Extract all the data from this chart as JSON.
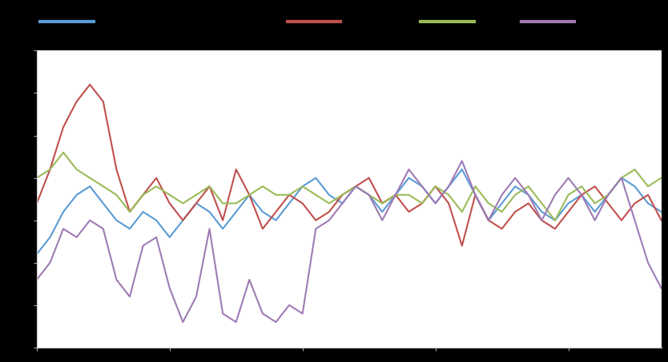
{
  "background_color": "#000000",
  "plot_bg_color": "#ffffff",
  "line_colors": [
    "#5b9bd5",
    "#c0504d",
    "#9bbb59",
    "#9e7bb5"
  ],
  "line_width": 1.5,
  "figsize": [
    8.34,
    4.53
  ],
  "dpi": 100,
  "blue": [
    1.6,
    1.8,
    2.1,
    2.3,
    2.4,
    2.2,
    2.0,
    1.9,
    2.1,
    2.0,
    1.8,
    2.0,
    2.2,
    2.1,
    1.9,
    2.1,
    2.3,
    2.1,
    2.0,
    2.2,
    2.4,
    2.5,
    2.3,
    2.2,
    2.4,
    2.3,
    2.1,
    2.3,
    2.5,
    2.4,
    2.2,
    2.4,
    2.6,
    2.3,
    2.0,
    2.2,
    2.4,
    2.3,
    2.1,
    2.0,
    2.2,
    2.3,
    2.1,
    2.3,
    2.5,
    2.4,
    2.2,
    2.1
  ],
  "red": [
    2.2,
    2.6,
    3.1,
    3.4,
    3.6,
    3.4,
    2.6,
    2.1,
    2.3,
    2.5,
    2.2,
    2.0,
    2.2,
    2.4,
    2.0,
    2.6,
    2.3,
    1.9,
    2.1,
    2.3,
    2.2,
    2.0,
    2.1,
    2.3,
    2.4,
    2.5,
    2.2,
    2.3,
    2.1,
    2.2,
    2.4,
    2.2,
    1.7,
    2.3,
    2.0,
    1.9,
    2.1,
    2.2,
    2.0,
    1.9,
    2.1,
    2.3,
    2.4,
    2.2,
    2.0,
    2.2,
    2.3,
    2.0
  ],
  "green": [
    2.5,
    2.6,
    2.8,
    2.6,
    2.5,
    2.4,
    2.3,
    2.1,
    2.3,
    2.4,
    2.3,
    2.2,
    2.3,
    2.4,
    2.2,
    2.2,
    2.3,
    2.4,
    2.3,
    2.3,
    2.4,
    2.3,
    2.2,
    2.3,
    2.4,
    2.3,
    2.2,
    2.3,
    2.3,
    2.2,
    2.4,
    2.3,
    2.1,
    2.4,
    2.2,
    2.1,
    2.3,
    2.4,
    2.2,
    2.0,
    2.3,
    2.4,
    2.2,
    2.3,
    2.5,
    2.6,
    2.4,
    2.5
  ],
  "purple": [
    1.3,
    1.5,
    1.9,
    1.8,
    2.0,
    1.9,
    1.3,
    1.1,
    1.7,
    1.8,
    1.2,
    0.8,
    1.1,
    1.9,
    0.9,
    0.8,
    1.3,
    0.9,
    0.8,
    1.0,
    0.9,
    1.9,
    2.0,
    2.2,
    2.4,
    2.3,
    2.0,
    2.3,
    2.6,
    2.4,
    2.2,
    2.4,
    2.7,
    2.3,
    2.0,
    2.3,
    2.5,
    2.3,
    2.0,
    2.3,
    2.5,
    2.3,
    2.0,
    2.3,
    2.5,
    2.0,
    1.5,
    1.2
  ],
  "ylim": [
    0.5,
    4.0
  ]
}
